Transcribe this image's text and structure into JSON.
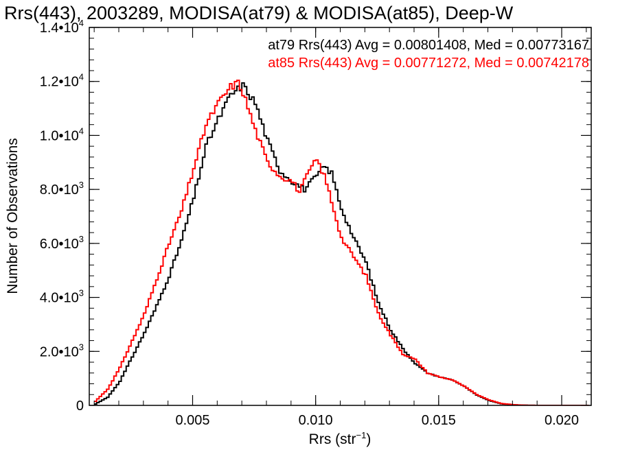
{
  "chart_data": {
    "type": "line",
    "title": "Rrs(443), 2003289, MODISA(at79) & MODISA(at85), Deep-W",
    "xlabel": {
      "base": "Rrs (str",
      "sup": "−1",
      "end": ")"
    },
    "ylabel": "Number of Observations",
    "xlim": [
      0.0008,
      0.0212
    ],
    "ylim": [
      0,
      14000
    ],
    "x_ticks": [
      {
        "value": 0.005,
        "label": "0.005"
      },
      {
        "value": 0.01,
        "label": "0.010"
      },
      {
        "value": 0.015,
        "label": "0.015"
      },
      {
        "value": 0.02,
        "label": "0.020"
      }
    ],
    "y_ticks": [
      {
        "value": 0,
        "label": "0",
        "exp": ""
      },
      {
        "value": 2000,
        "label": "2.0•10",
        "exp": "3"
      },
      {
        "value": 4000,
        "label": "4.0•10",
        "exp": "3"
      },
      {
        "value": 6000,
        "label": "6.0•10",
        "exp": "3"
      },
      {
        "value": 8000,
        "label": "8.0•10",
        "exp": "3"
      },
      {
        "value": 10000,
        "label": "1.0•10",
        "exp": "4"
      },
      {
        "value": 12000,
        "label": "1.2•10",
        "exp": "4"
      },
      {
        "value": 14000,
        "label": "1.4•10",
        "exp": "4"
      }
    ],
    "x_minor_step": 0.001,
    "y_minor_step": 400,
    "grid": false,
    "series": [
      {
        "name": "at79",
        "color": "#000000",
        "annotation": "at79 Rrs(443) Avg = 0.00801408, Med = 0.00773167",
        "points": [
          [
            0.001,
            50
          ],
          [
            0.0015,
            300
          ],
          [
            0.002,
            900
          ],
          [
            0.0025,
            1800
          ],
          [
            0.003,
            2700
          ],
          [
            0.0035,
            3700
          ],
          [
            0.004,
            4800
          ],
          [
            0.0045,
            6100
          ],
          [
            0.005,
            7700
          ],
          [
            0.0055,
            9600
          ],
          [
            0.006,
            10600
          ],
          [
            0.0065,
            11500
          ],
          [
            0.007,
            11850
          ],
          [
            0.0075,
            11200
          ],
          [
            0.008,
            9800
          ],
          [
            0.0085,
            8700
          ],
          [
            0.009,
            8300
          ],
          [
            0.0095,
            8000
          ],
          [
            0.01,
            8500
          ],
          [
            0.0103,
            8850
          ],
          [
            0.0106,
            8600
          ],
          [
            0.011,
            7300
          ],
          [
            0.0115,
            6200
          ],
          [
            0.012,
            5300
          ],
          [
            0.0125,
            3800
          ],
          [
            0.013,
            2800
          ],
          [
            0.0135,
            2100
          ],
          [
            0.014,
            1550
          ],
          [
            0.0145,
            1200
          ],
          [
            0.015,
            1050
          ],
          [
            0.0155,
            950
          ],
          [
            0.016,
            700
          ],
          [
            0.0165,
            380
          ],
          [
            0.017,
            180
          ],
          [
            0.0175,
            60
          ],
          [
            0.018,
            20
          ],
          [
            0.0185,
            5
          ],
          [
            0.019,
            0
          ],
          [
            0.021,
            0
          ]
        ]
      },
      {
        "name": "at85",
        "color": "#ff0000",
        "annotation": "at85 Rrs(443) Avg = 0.00771272, Med = 0.00742178",
        "points": [
          [
            0.001,
            150
          ],
          [
            0.0015,
            600
          ],
          [
            0.002,
            1400
          ],
          [
            0.0025,
            2400
          ],
          [
            0.003,
            3400
          ],
          [
            0.0035,
            4700
          ],
          [
            0.004,
            6000
          ],
          [
            0.0045,
            7200
          ],
          [
            0.005,
            8800
          ],
          [
            0.0055,
            10400
          ],
          [
            0.006,
            11200
          ],
          [
            0.0065,
            11800
          ],
          [
            0.0068,
            11950
          ],
          [
            0.007,
            11600
          ],
          [
            0.0075,
            10200
          ],
          [
            0.008,
            9000
          ],
          [
            0.0085,
            8500
          ],
          [
            0.009,
            8300
          ],
          [
            0.0093,
            7900
          ],
          [
            0.0097,
            8700
          ],
          [
            0.01,
            9100
          ],
          [
            0.0103,
            8500
          ],
          [
            0.0105,
            7900
          ],
          [
            0.011,
            6200
          ],
          [
            0.0115,
            5500
          ],
          [
            0.012,
            4800
          ],
          [
            0.0125,
            3400
          ],
          [
            0.013,
            2600
          ],
          [
            0.0135,
            1900
          ],
          [
            0.014,
            1700
          ],
          [
            0.0145,
            1200
          ],
          [
            0.015,
            1050
          ],
          [
            0.0155,
            950
          ],
          [
            0.016,
            700
          ],
          [
            0.0165,
            400
          ],
          [
            0.017,
            200
          ],
          [
            0.0175,
            70
          ],
          [
            0.018,
            25
          ],
          [
            0.0185,
            5
          ],
          [
            0.019,
            0
          ],
          [
            0.021,
            0
          ]
        ]
      }
    ]
  }
}
